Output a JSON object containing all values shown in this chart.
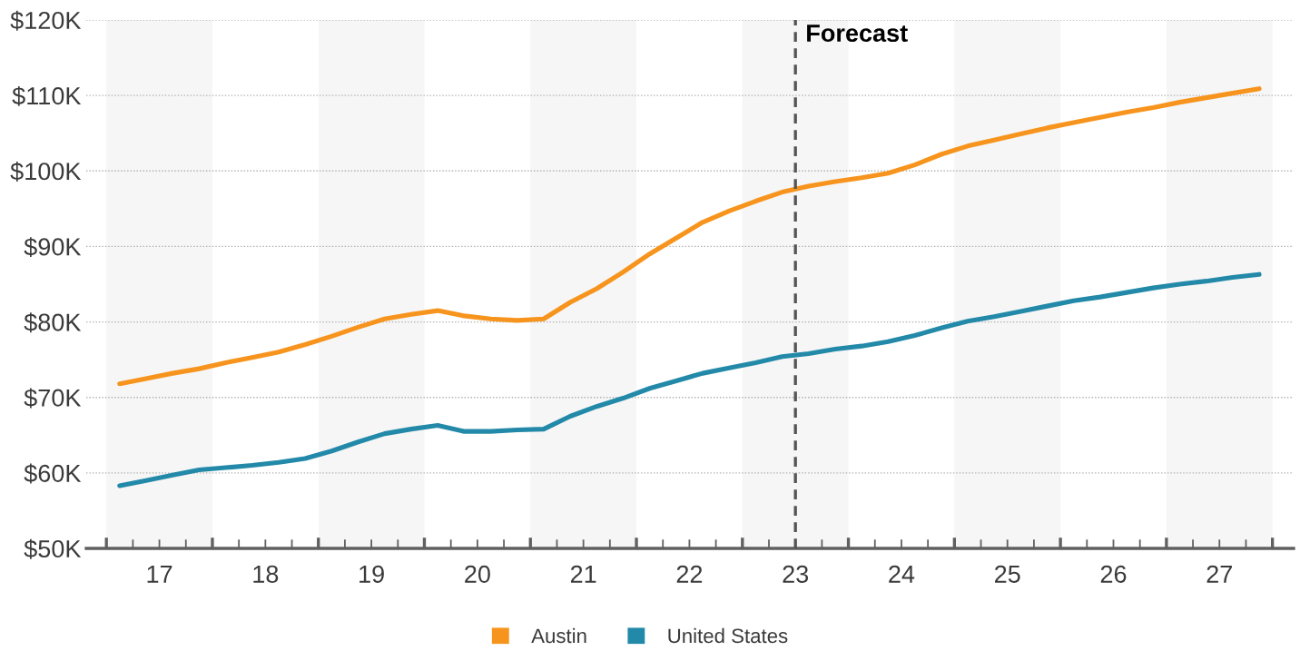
{
  "chart_data": {
    "type": "line",
    "x": [
      16.625,
      16.875,
      17.125,
      17.375,
      17.625,
      17.875,
      18.125,
      18.375,
      18.625,
      18.875,
      19.125,
      19.375,
      19.625,
      19.875,
      20.125,
      20.375,
      20.625,
      20.875,
      21.125,
      21.375,
      21.625,
      21.875,
      22.125,
      22.375,
      22.625,
      22.875,
      23.125,
      23.375,
      23.625,
      23.875,
      24.125,
      24.375,
      24.625,
      24.875,
      25.125,
      25.375,
      25.625,
      25.875,
      26.125,
      26.375,
      26.625,
      26.875,
      27.125,
      27.375
    ],
    "series": [
      {
        "name": "Austin",
        "color": "#f7941d",
        "values": [
          71800,
          72500,
          73200,
          73800,
          74600,
          75300,
          76000,
          77000,
          78100,
          79300,
          80400,
          81000,
          81500,
          80800,
          80400,
          80200,
          80400,
          82600,
          84400,
          86600,
          89000,
          91100,
          93200,
          94700,
          96000,
          97200,
          98000,
          98600,
          99100,
          99700,
          100800,
          102200,
          103300,
          104100,
          104900,
          105700,
          106400,
          107100,
          107800,
          108400,
          109100,
          109700,
          110300,
          110900
        ]
      },
      {
        "name": "United States",
        "color": "#2389a9",
        "values": [
          58300,
          59000,
          59700,
          60400,
          60700,
          61000,
          61400,
          61900,
          62900,
          64100,
          65200,
          65800,
          66300,
          65500,
          65500,
          65700,
          65800,
          67500,
          68800,
          69900,
          71200,
          72200,
          73200,
          73900,
          74600,
          75400,
          75800,
          76400,
          76800,
          77400,
          78200,
          79200,
          80100,
          80700,
          81400,
          82100,
          82800,
          83300,
          83900,
          84500,
          85000,
          85400,
          85900,
          86300
        ]
      }
    ],
    "xlim": [
      16.31,
      27.7
    ],
    "xticks": [
      {
        "value": 16.5,
        "label": null
      },
      {
        "value": 16.75,
        "label": null
      },
      17,
      {
        "value": 17.25,
        "label": null
      },
      {
        "value": 17.5,
        "label": null
      },
      {
        "value": 17.75,
        "label": null
      },
      18,
      {
        "value": 18.25,
        "label": null
      },
      {
        "value": 18.5,
        "label": null
      },
      {
        "value": 18.75,
        "label": null
      },
      19,
      {
        "value": 19.25,
        "label": null
      },
      {
        "value": 19.5,
        "label": null
      },
      {
        "value": 19.75,
        "label": null
      },
      20,
      {
        "value": 20.25,
        "label": null
      },
      {
        "value": 20.5,
        "label": null
      },
      {
        "value": 20.75,
        "label": null
      },
      21,
      {
        "value": 21.25,
        "label": null
      },
      {
        "value": 21.5,
        "label": null
      },
      {
        "value": 21.75,
        "label": null
      },
      22,
      {
        "value": 22.25,
        "label": null
      },
      {
        "value": 22.5,
        "label": null
      },
      {
        "value": 22.75,
        "label": null
      },
      23,
      {
        "value": 23.25,
        "label": null
      },
      {
        "value": 23.5,
        "label": null
      },
      {
        "value": 23.75,
        "label": null
      },
      24,
      {
        "value": 24.25,
        "label": null
      },
      {
        "value": 24.5,
        "label": null
      },
      {
        "value": 24.75,
        "label": null
      },
      25,
      {
        "value": 25.25,
        "label": null
      },
      {
        "value": 25.5,
        "label": null
      },
      {
        "value": 25.75,
        "label": null
      },
      26,
      {
        "value": 26.25,
        "label": null
      },
      {
        "value": 26.5,
        "label": null
      },
      {
        "value": 26.75,
        "label": null
      },
      27,
      {
        "value": 27.25,
        "label": null
      },
      {
        "value": 27.5,
        "label": null
      }
    ],
    "ylim": [
      50000,
      120000
    ],
    "yticks": [
      {
        "value": 50000,
        "label": "$50K"
      },
      {
        "value": 60000,
        "label": "$60K"
      },
      {
        "value": 70000,
        "label": "$70K"
      },
      {
        "value": 80000,
        "label": "$80K"
      },
      {
        "value": 90000,
        "label": "$90K"
      },
      {
        "value": 100000,
        "label": "$100K"
      },
      {
        "value": 110000,
        "label": "$110K"
      },
      {
        "value": 120000,
        "label": "$120K"
      }
    ],
    "bands": [
      {
        "axis": "x",
        "from": 16.5,
        "to": 17.5,
        "color": "#f6f6f6"
      },
      {
        "axis": "x",
        "from": 18.5,
        "to": 19.5,
        "color": "#f6f6f6"
      },
      {
        "axis": "x",
        "from": 20.5,
        "to": 21.5,
        "color": "#f6f6f6"
      },
      {
        "axis": "x",
        "from": 22.5,
        "to": 23.5,
        "color": "#f6f6f6"
      },
      {
        "axis": "x",
        "from": 24.5,
        "to": 25.5,
        "color": "#f6f6f6"
      },
      {
        "axis": "x",
        "from": 26.5,
        "to": 27.5,
        "color": "#f6f6f6"
      }
    ],
    "ref_lines": [
      {
        "axis": "x",
        "value": 23,
        "label": "Forecast",
        "color": "#555555",
        "line_style": "dashed"
      }
    ],
    "grid": "y",
    "legend": "bottom"
  }
}
